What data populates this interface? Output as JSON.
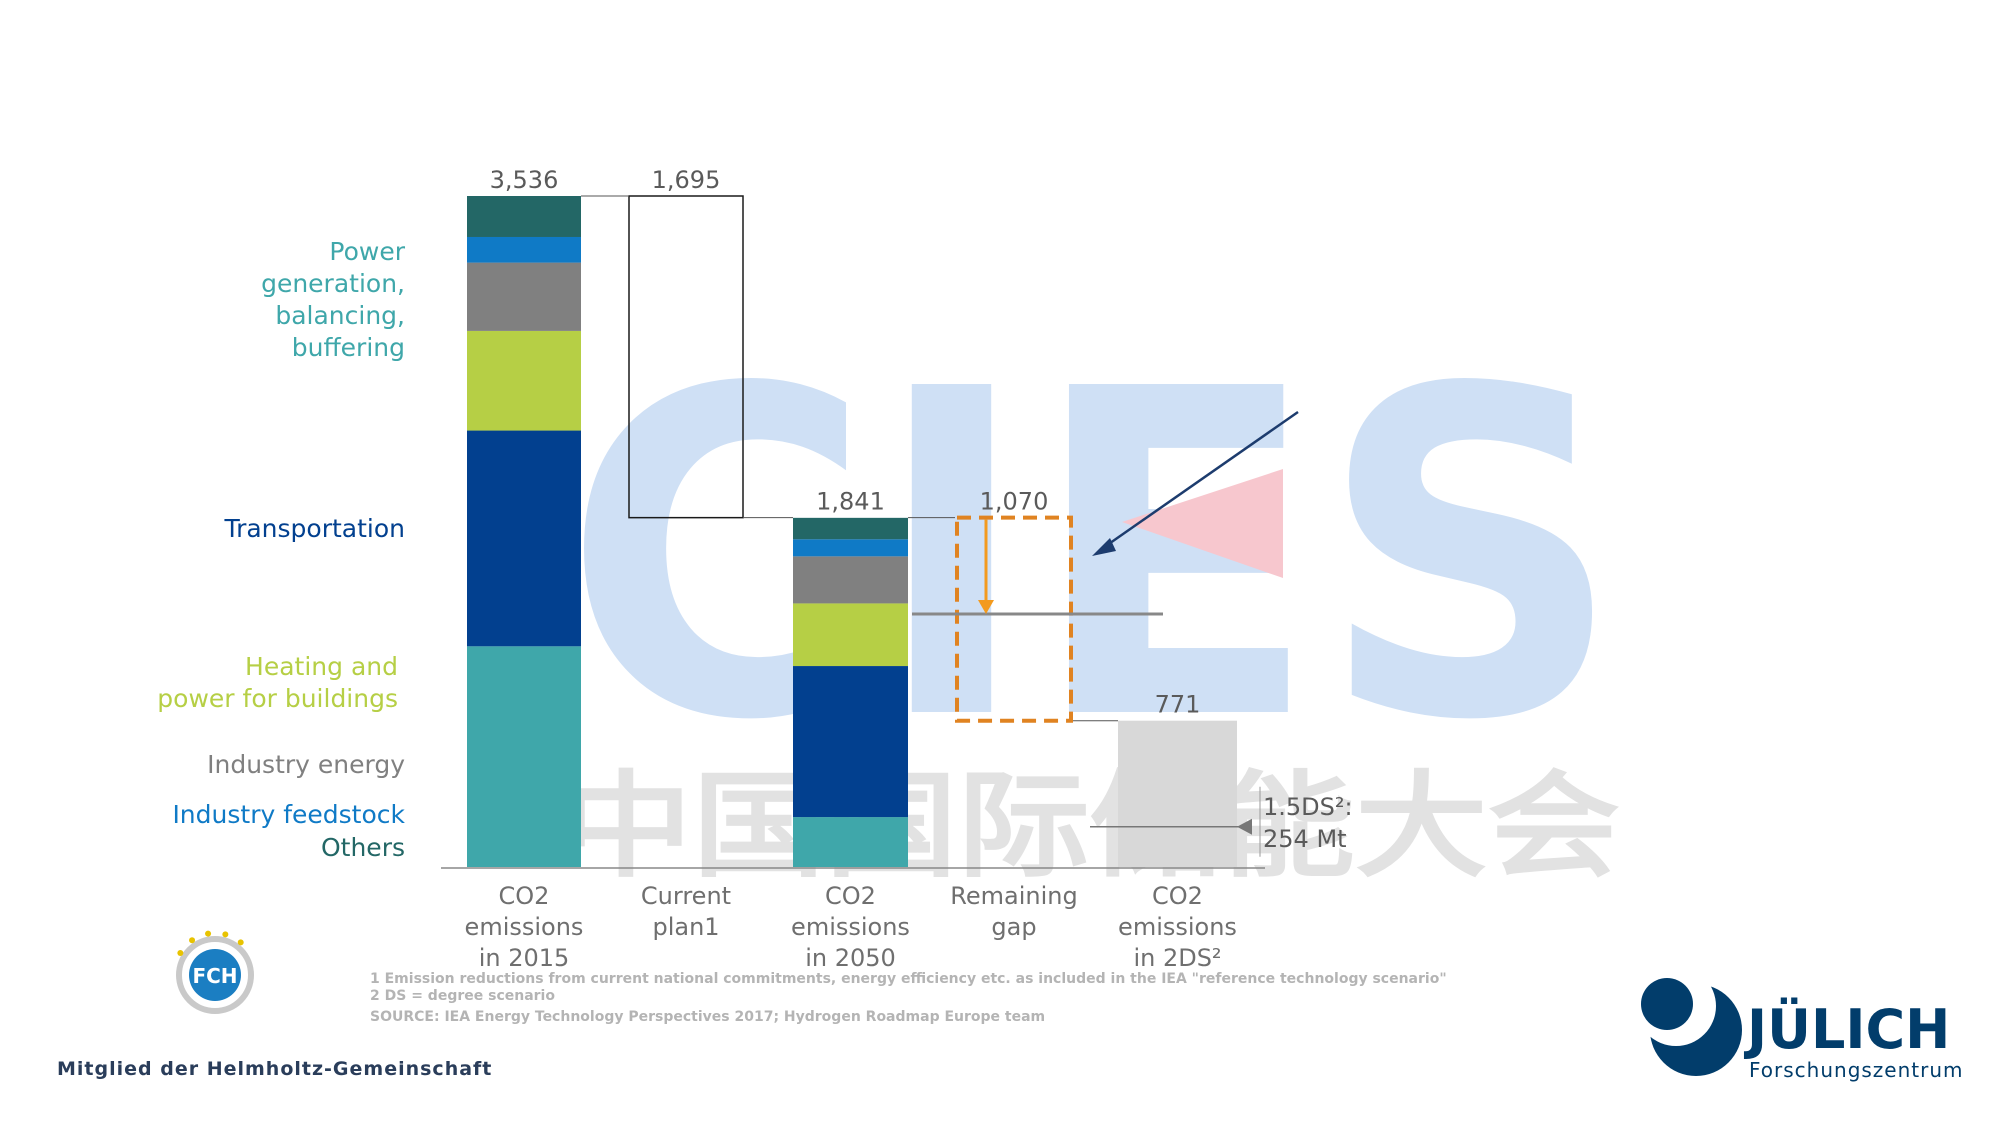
{
  "chart_data": {
    "type": "bar",
    "subtype": "waterfall",
    "unit": "Mt",
    "categories": [
      "CO2 emissions in 2015",
      "Current plan1",
      "CO2 emissions in 2050",
      "Remaining gap",
      "CO2 emissions in 2DS²"
    ],
    "category_lines": [
      [
        "CO2",
        "emissions",
        "in 2015"
      ],
      [
        "Current",
        "plan1"
      ],
      [
        "CO2",
        "emissions",
        "in 2050"
      ],
      [
        "Remaining",
        "gap"
      ],
      [
        "CO2",
        "emissions",
        "in 2DS²"
      ]
    ],
    "totals": [
      3536,
      1695,
      1841,
      1070,
      771
    ],
    "total_labels": [
      "3,536",
      "1,695",
      "1,841",
      "1,070",
      "771"
    ],
    "ylim": [
      0,
      3536
    ],
    "series": [
      {
        "name": "Power generation, balancing, buffering",
        "color": "#3fa7aa",
        "values": [
          1163,
          null,
          263,
          null,
          null
        ]
      },
      {
        "name": "Transportation",
        "color": "#02408f",
        "values": [
          1137,
          null,
          796,
          null,
          null
        ]
      },
      {
        "name": "Heating and power for buildings",
        "color": "#b6cf45",
        "values": [
          525,
          null,
          330,
          null,
          null
        ]
      },
      {
        "name": "Industry energy",
        "color": "#808080",
        "values": [
          360,
          null,
          248,
          null,
          null
        ]
      },
      {
        "name": "Industry feedstock",
        "color": "#0f7ac6",
        "values": [
          135,
          null,
          90,
          null,
          null
        ]
      },
      {
        "name": "Others",
        "color": "#236766",
        "values": [
          216,
          null,
          113,
          null,
          null
        ]
      }
    ],
    "legend_lines": [
      [
        "Power",
        "generation,",
        "balancing,",
        "buffering"
      ],
      [
        "Transportation"
      ],
      [
        "Heating and",
        "power for buildings"
      ],
      [
        "Industry energy"
      ],
      [
        "Industry feedstock"
      ],
      [
        "Others"
      ]
    ],
    "reference_line": {
      "value": 1333
    },
    "annotation": {
      "lines": [
        "1.5DS²:",
        "254 Mt"
      ],
      "value": 254
    },
    "colors": {
      "outline": "#1a1a1a",
      "gap_dash": "#e08321",
      "gap_arrow": "#f39a1e",
      "ref_line": "#888888",
      "pointer_arrow": "#1d3c6e",
      "grey_bar": "#d8d8d8"
    }
  },
  "footnotes": [
    "1 Emission reductions from current national commitments, energy efficiency etc. as included in the IEA \"reference technology scenario\"",
    "2 DS = degree scenario",
    "SOURCE: IEA Energy Technology Perspectives 2017; Hydrogen Roadmap Europe team"
  ],
  "footer": {
    "member_text": "Mitglied der Helmholtz-Gemeinschaft"
  },
  "logos": {
    "fch_text": "FCH",
    "julich_name": "JÜLICH",
    "julich_sub": "Forschungszentrum"
  },
  "watermark": {
    "latin": "CIES",
    "chinese": "中国国际储能大会"
  }
}
